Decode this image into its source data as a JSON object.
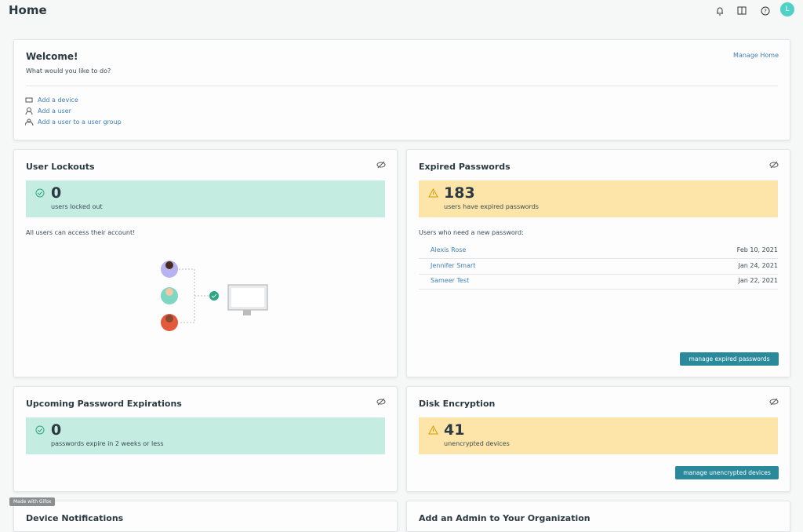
{
  "header": {
    "title": "Home",
    "avatar": "L"
  },
  "welcome": {
    "title": "Welcome!",
    "subtitle": "What would you like to do?",
    "manage": "Manage Home",
    "actions": [
      "Add a device",
      "Add a user",
      "Add a user to a user group"
    ]
  },
  "user_lockouts": {
    "title": "User Lockouts",
    "count": "0",
    "label": "users locked out",
    "message": "All users can access their account!"
  },
  "expired_passwords": {
    "title": "Expired Passwords",
    "count": "183",
    "label": "users have expired passwords",
    "subtitle": "Users who need a new password:",
    "users": [
      {
        "name": "Alexis Rose",
        "date": "Feb 10, 2021"
      },
      {
        "name": "Jennifer Smart",
        "date": "Jan 24, 2021"
      },
      {
        "name": "Sameer Test",
        "date": "Jan 22, 2021"
      }
    ],
    "button": "manage expired passwords"
  },
  "upcoming_expirations": {
    "title": "Upcoming Password Expirations",
    "count": "0",
    "label": "passwords expire in 2 weeks or less"
  },
  "disk_encryption": {
    "title": "Disk Encryption",
    "count": "41",
    "label": "unencrypted devices",
    "button": "manage unencrypted devices"
  },
  "bottom_cards": [
    "Device Notifications",
    "Add an Admin to Your Organization"
  ],
  "watermark": "Made with Gifox"
}
